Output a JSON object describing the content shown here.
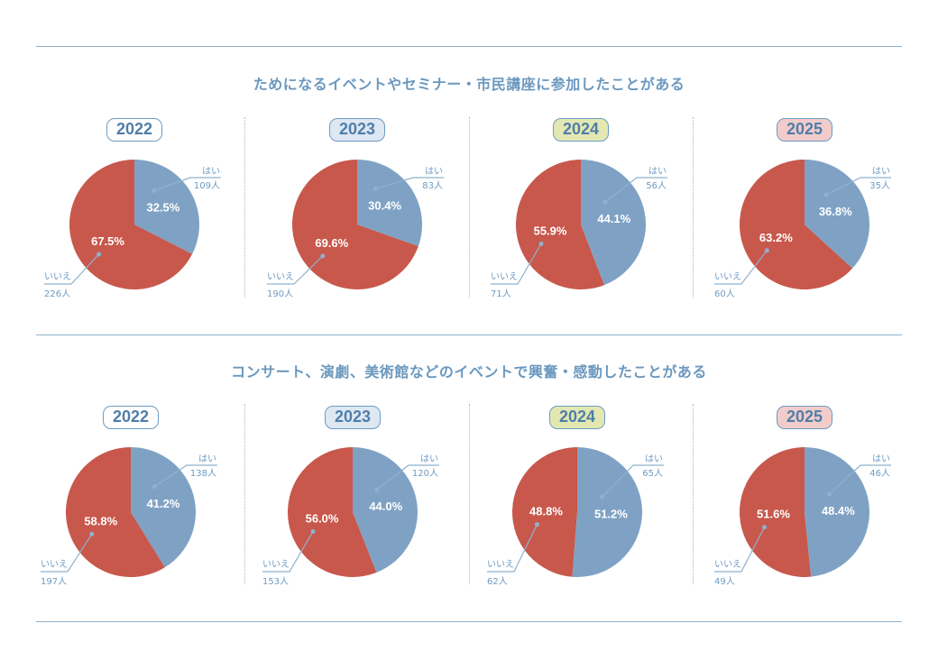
{
  "colors": {
    "yes": "#7fa2c4",
    "no": "#c8584c",
    "line": "#8fb2cc"
  },
  "sections": [
    {
      "title": "ためになるイベントやセミナー・市民講座に参加したことがある",
      "charts": [
        {
          "year": "2022",
          "badge_bg": "#ffffff",
          "yes_pct": "32.5%",
          "no_pct": "67.5%",
          "yes_label": "はい",
          "yes_count": "109人",
          "no_label": "いいえ",
          "no_count": "226人"
        },
        {
          "year": "2023",
          "badge_bg": "#dde8f3",
          "yes_pct": "30.4%",
          "no_pct": "69.6%",
          "yes_label": "はい",
          "yes_count": "83人",
          "no_label": "いいえ",
          "no_count": "190人"
        },
        {
          "year": "2024",
          "badge_bg": "#e3e8b2",
          "yes_pct": "44.1%",
          "no_pct": "55.9%",
          "yes_label": "はい",
          "yes_count": "56人",
          "no_label": "いいえ",
          "no_count": "71人"
        },
        {
          "year": "2025",
          "badge_bg": "#f2cccb",
          "yes_pct": "36.8%",
          "no_pct": "63.2%",
          "yes_label": "はい",
          "yes_count": "35人",
          "no_label": "いいえ",
          "no_count": "60人"
        }
      ]
    },
    {
      "title": "コンサート、演劇、美術館などのイベントで興奮・感動したことがある",
      "charts": [
        {
          "year": "2022",
          "badge_bg": "#ffffff",
          "yes_pct": "41.2%",
          "no_pct": "58.8%",
          "yes_label": "はい",
          "yes_count": "138人",
          "no_label": "いいえ",
          "no_count": "197人"
        },
        {
          "year": "2023",
          "badge_bg": "#dde8f3",
          "yes_pct": "44.0%",
          "no_pct": "56.0%",
          "yes_label": "はい",
          "yes_count": "120人",
          "no_label": "いいえ",
          "no_count": "153人"
        },
        {
          "year": "2024",
          "badge_bg": "#e3e8b2",
          "yes_pct": "51.2%",
          "no_pct": "48.8%",
          "yes_label": "はい",
          "yes_count": "65人",
          "no_label": "いいえ",
          "no_count": "62人"
        },
        {
          "year": "2025",
          "badge_bg": "#f2cccb",
          "yes_pct": "48.4%",
          "no_pct": "51.6%",
          "yes_label": "はい",
          "yes_count": "46人",
          "no_label": "いいえ",
          "no_count": "49人"
        }
      ]
    }
  ],
  "chart_data": [
    {
      "type": "pie",
      "title": "ためになるイベントやセミナー・市民講座に参加したことがある",
      "subtitle": "2022",
      "labels": [
        "はい",
        "いいえ"
      ],
      "values": [
        32.5,
        67.5
      ],
      "counts": [
        109,
        226
      ]
    },
    {
      "type": "pie",
      "title": "ためになるイベントやセミナー・市民講座に参加したことがある",
      "subtitle": "2023",
      "labels": [
        "はい",
        "いいえ"
      ],
      "values": [
        30.4,
        69.6
      ],
      "counts": [
        83,
        190
      ]
    },
    {
      "type": "pie",
      "title": "ためになるイベントやセミナー・市民講座に参加したことがある",
      "subtitle": "2024",
      "labels": [
        "はい",
        "いいえ"
      ],
      "values": [
        44.1,
        55.9
      ],
      "counts": [
        56,
        71
      ]
    },
    {
      "type": "pie",
      "title": "ためになるイベントやセミナー・市民講座に参加したことがある",
      "subtitle": "2025",
      "labels": [
        "はい",
        "いいえ"
      ],
      "values": [
        36.8,
        63.2
      ],
      "counts": [
        35,
        60
      ]
    },
    {
      "type": "pie",
      "title": "コンサート、演劇、美術館などのイベントで興奮・感動したことがある",
      "subtitle": "2022",
      "labels": [
        "はい",
        "いいえ"
      ],
      "values": [
        41.2,
        58.8
      ],
      "counts": [
        138,
        197
      ]
    },
    {
      "type": "pie",
      "title": "コンサート、演劇、美術館などのイベントで興奮・感動したことがある",
      "subtitle": "2023",
      "labels": [
        "はい",
        "いいえ"
      ],
      "values": [
        44.0,
        56.0
      ],
      "counts": [
        120,
        153
      ]
    },
    {
      "type": "pie",
      "title": "コンサート、演劇、美術館などのイベントで興奮・感動したことがある",
      "subtitle": "2024",
      "labels": [
        "はい",
        "いいえ"
      ],
      "values": [
        51.2,
        48.8
      ],
      "counts": [
        65,
        62
      ]
    },
    {
      "type": "pie",
      "title": "コンサート、演劇、美術館などのイベントで興奮・感動したことがある",
      "subtitle": "2025",
      "labels": [
        "はい",
        "いいえ"
      ],
      "values": [
        48.4,
        51.6
      ],
      "counts": [
        46,
        49
      ]
    }
  ]
}
